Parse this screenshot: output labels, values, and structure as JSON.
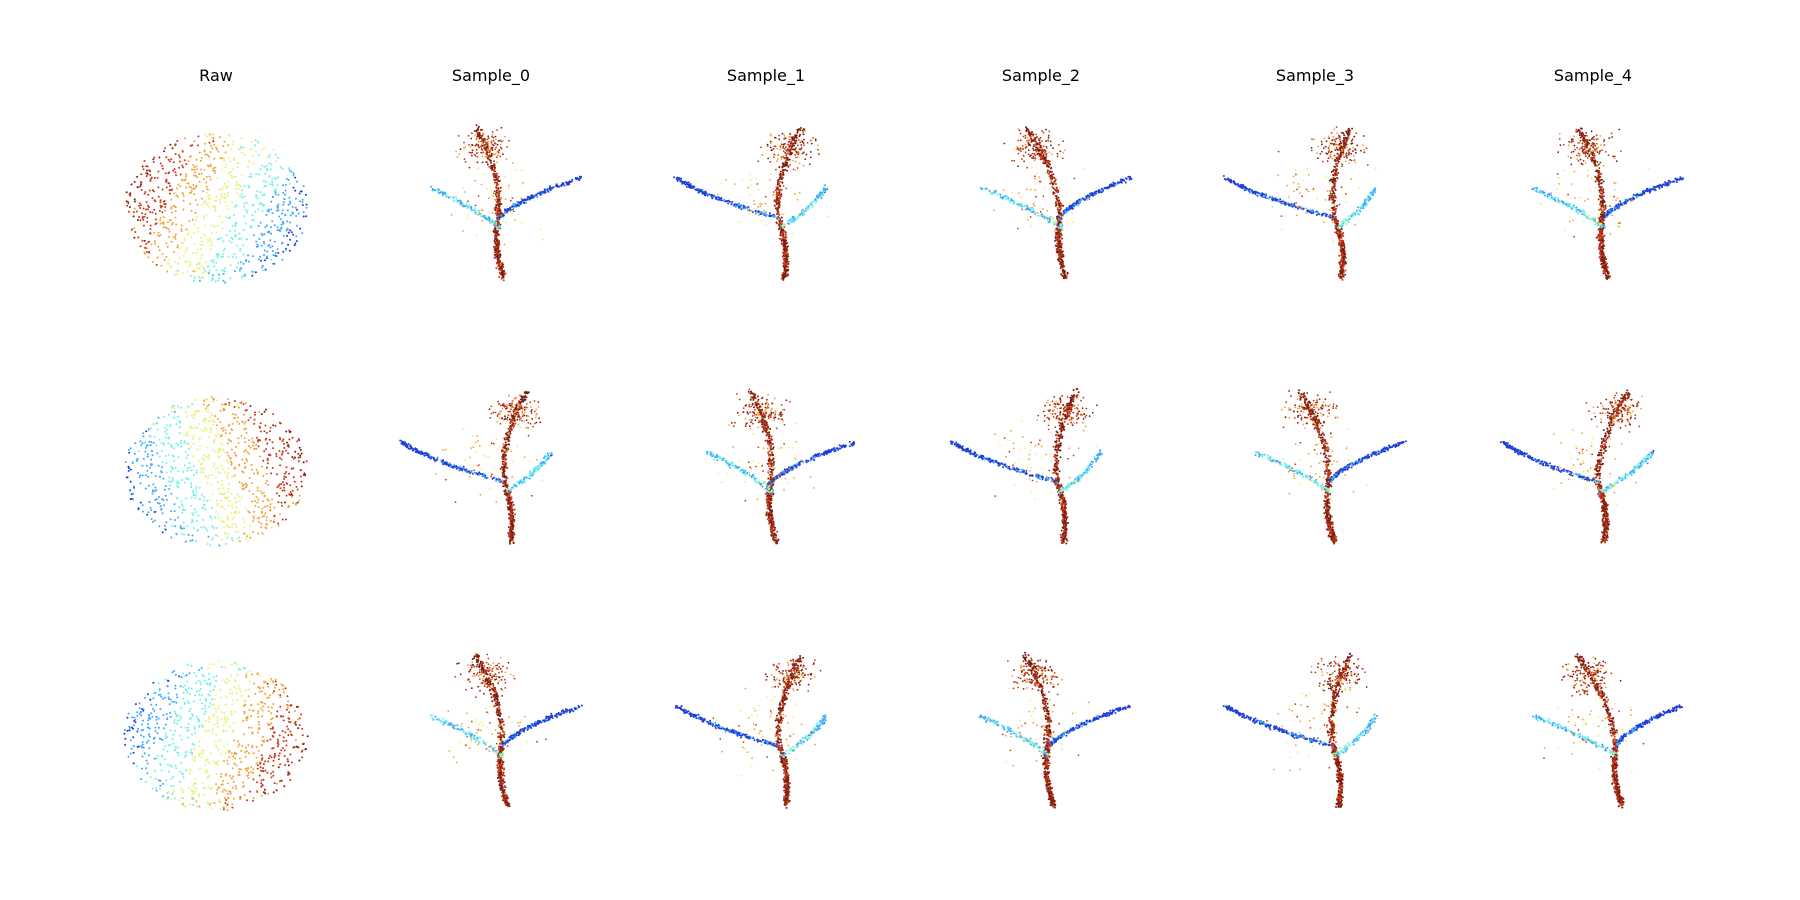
{
  "figure": {
    "columns": [
      "Raw",
      "Sample_0",
      "Sample_1",
      "Sample_2",
      "Sample_3",
      "Sample_4"
    ],
    "rows": 3,
    "panel_kinds": {
      "Raw": "sphere point cloud",
      "Sample": "tree-shaped point cloud"
    },
    "colormap": [
      "#1f3fd6",
      "#3fa7ff",
      "#6ff0e8",
      "#e8f07a",
      "#f0a33a",
      "#c83a1a",
      "#7a1e10"
    ]
  }
}
